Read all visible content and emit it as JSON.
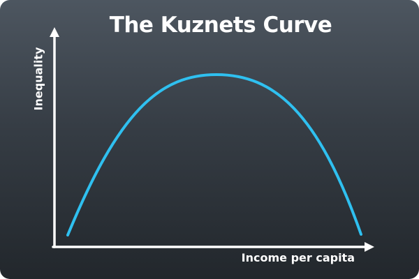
{
  "diagram": {
    "title": "The Kuznets Curve",
    "y_axis_label": "Inequality",
    "x_axis_label": "Income per capita",
    "curve_shape": "inverted-u",
    "colors": {
      "background_top": "#4d5660",
      "background_bottom": "#22272c",
      "curve": "#2fc0f0",
      "axes": "#ffffff",
      "text": "#ffffff"
    }
  }
}
